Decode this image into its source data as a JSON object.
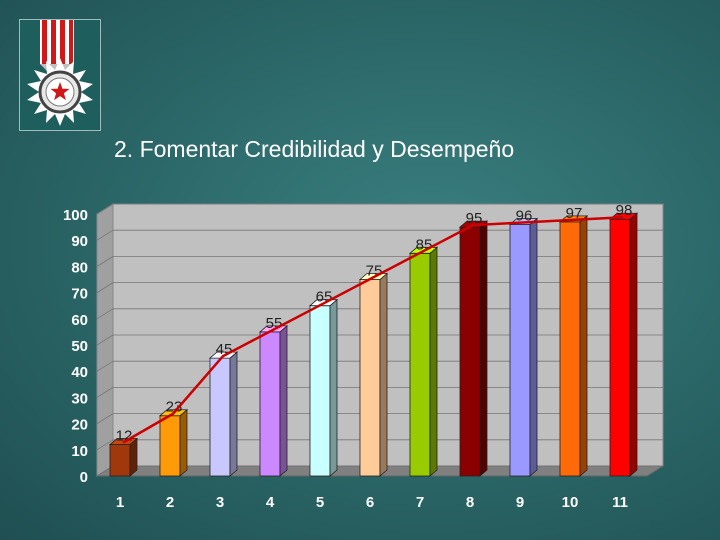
{
  "slide": {
    "title": "2. Fomentar Credibilidad y Desempeño",
    "icon": "medal-icon"
  },
  "chart_data": {
    "type": "bar",
    "categories": [
      "1",
      "2",
      "3",
      "4",
      "5",
      "6",
      "7",
      "8",
      "9",
      "10",
      "11"
    ],
    "values": [
      12,
      23,
      45,
      55,
      65,
      75,
      85,
      95,
      96,
      97,
      98
    ],
    "bar_colors": [
      "#a0380c",
      "#ff9a08",
      "#c8c8ff",
      "#cc88ff",
      "#c8ffff",
      "#ffcc99",
      "#99cc00",
      "#8b0000",
      "#9999ff",
      "#ff6a08",
      "#ff0000"
    ],
    "line_overlay": {
      "values": [
        12,
        23,
        45,
        55,
        65,
        75,
        85,
        95,
        96,
        97,
        98
      ],
      "color": "#cc0000"
    },
    "ylim": [
      0,
      100
    ],
    "yticks": [
      0,
      10,
      20,
      30,
      40,
      50,
      60,
      70,
      80,
      90,
      100
    ],
    "grid": true,
    "title": "",
    "xlabel": "",
    "ylabel": ""
  }
}
